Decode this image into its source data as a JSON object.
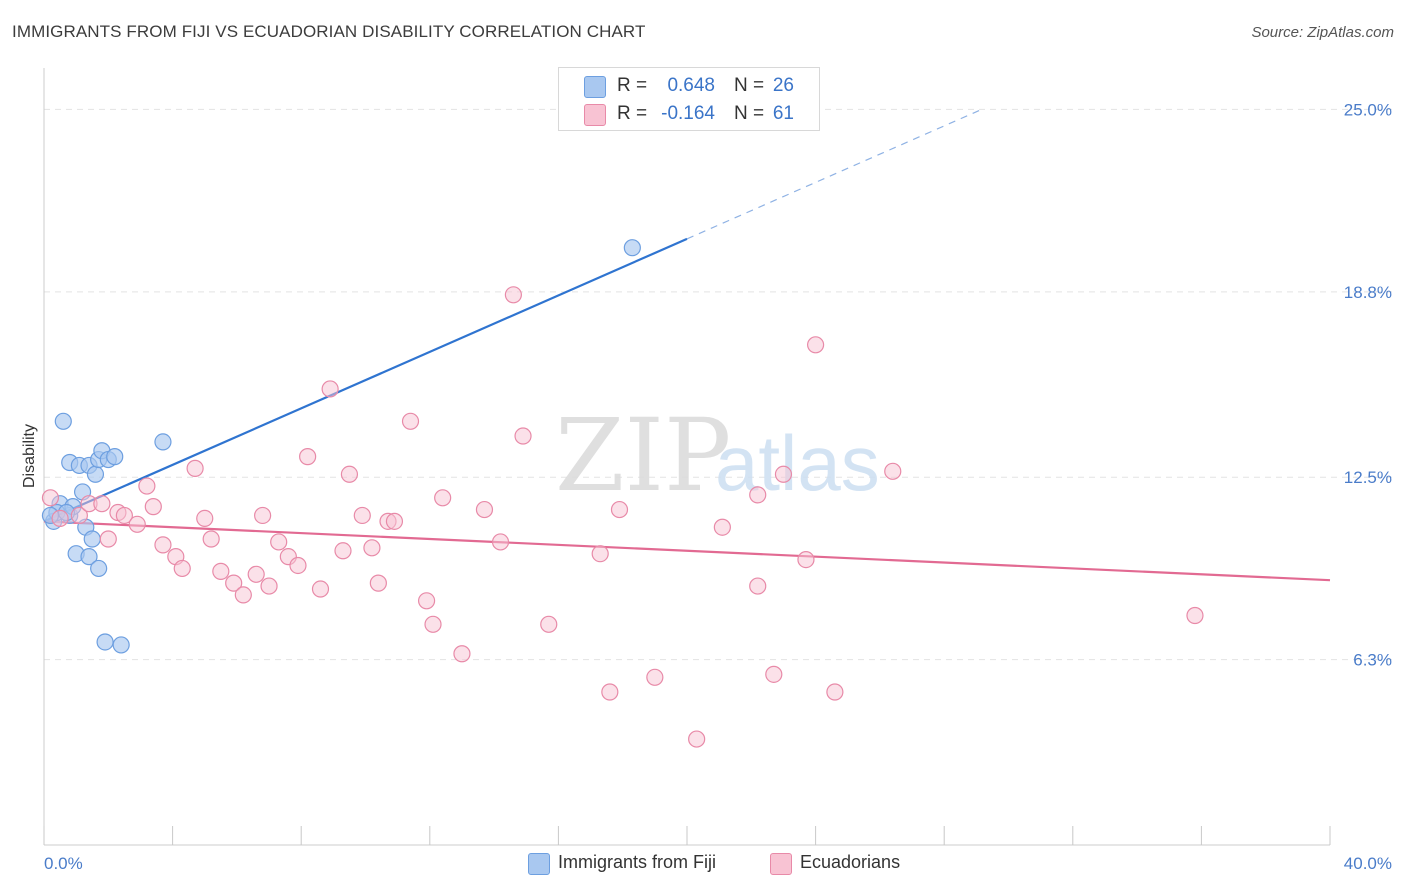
{
  "title": "IMMIGRANTS FROM FIJI VS ECUADORIAN DISABILITY CORRELATION CHART",
  "source": "Source: ZipAtlas.com",
  "watermark": {
    "zip": "ZIP",
    "atlas": "atlas"
  },
  "legend": {
    "rows": [
      {
        "r_label": "R =",
        "r_value": "0.648",
        "n_label": "N =",
        "n_value": "26",
        "color": "#a9c8f0",
        "border": "#6d9fe0"
      },
      {
        "r_label": "R =",
        "r_value": "-0.164",
        "n_label": "N =",
        "n_value": "61",
        "color": "#f8c3d3",
        "border": "#e88aa8"
      }
    ]
  },
  "bottom_legend": [
    {
      "label": "Immigrants from Fiji",
      "color": "#a9c8f0",
      "border": "#6d9fe0"
    },
    {
      "label": "Ecuadorians",
      "color": "#f8c3d3",
      "border": "#e88aa8"
    }
  ],
  "chart_data": {
    "type": "scatter",
    "xlabel": "",
    "ylabel": "Disability",
    "xlim": [
      0,
      40
    ],
    "ylim": [
      0,
      26
    ],
    "x_tick_labels": [
      "0.0%",
      "40.0%"
    ],
    "y_ticks": [
      6.3,
      12.5,
      18.8,
      25.0
    ],
    "y_tick_labels": [
      "6.3%",
      "12.5%",
      "18.8%",
      "25.0%"
    ],
    "grid": true,
    "series": [
      {
        "name": "Immigrants from Fiji",
        "color": "#6d9fe0",
        "fill": "#a9c8f0",
        "trend": {
          "x0": 0,
          "y0": 11.0,
          "x1": 20,
          "y1": 20.6,
          "x_dashed_end": 29.2
        },
        "points": [
          [
            0.3,
            11.0
          ],
          [
            0.5,
            11.6
          ],
          [
            0.8,
            11.2
          ],
          [
            0.9,
            11.5
          ],
          [
            0.6,
            14.4
          ],
          [
            0.8,
            13.0
          ],
          [
            1.0,
            9.9
          ],
          [
            1.1,
            12.9
          ],
          [
            1.4,
            12.9
          ],
          [
            1.3,
            10.8
          ],
          [
            1.2,
            12.0
          ],
          [
            1.4,
            9.8
          ],
          [
            1.5,
            10.4
          ],
          [
            1.6,
            12.6
          ],
          [
            1.7,
            13.1
          ],
          [
            1.7,
            9.4
          ],
          [
            1.8,
            13.4
          ],
          [
            2.0,
            13.1
          ],
          [
            2.2,
            13.2
          ],
          [
            1.9,
            6.9
          ],
          [
            2.4,
            6.8
          ],
          [
            3.7,
            13.7
          ],
          [
            18.3,
            20.3
          ],
          [
            0.4,
            11.3
          ],
          [
            0.7,
            11.3
          ],
          [
            0.2,
            11.2
          ]
        ]
      },
      {
        "name": "Ecuadorians",
        "color": "#e88aa8",
        "fill": "#f8c3d3",
        "trend": {
          "x0": 0,
          "y0": 11.0,
          "x1": 40,
          "y1": 9.0
        },
        "points": [
          [
            0.2,
            11.8
          ],
          [
            1.1,
            11.2
          ],
          [
            1.4,
            11.6
          ],
          [
            1.8,
            11.6
          ],
          [
            2.0,
            10.4
          ],
          [
            2.3,
            11.3
          ],
          [
            2.5,
            11.2
          ],
          [
            2.9,
            10.9
          ],
          [
            3.2,
            12.2
          ],
          [
            3.4,
            11.5
          ],
          [
            3.7,
            10.2
          ],
          [
            4.1,
            9.8
          ],
          [
            4.3,
            9.4
          ],
          [
            4.7,
            12.8
          ],
          [
            5.0,
            11.1
          ],
          [
            5.2,
            10.4
          ],
          [
            5.5,
            9.3
          ],
          [
            5.9,
            8.9
          ],
          [
            6.2,
            8.5
          ],
          [
            6.6,
            9.2
          ],
          [
            6.8,
            11.2
          ],
          [
            7.0,
            8.8
          ],
          [
            7.3,
            10.3
          ],
          [
            7.6,
            9.8
          ],
          [
            7.9,
            9.5
          ],
          [
            8.2,
            13.2
          ],
          [
            8.6,
            8.7
          ],
          [
            8.9,
            15.5
          ],
          [
            9.3,
            10.0
          ],
          [
            9.5,
            12.6
          ],
          [
            9.9,
            11.2
          ],
          [
            10.2,
            10.1
          ],
          [
            10.4,
            8.9
          ],
          [
            10.7,
            11.0
          ],
          [
            10.9,
            11.0
          ],
          [
            11.4,
            14.4
          ],
          [
            11.9,
            8.3
          ],
          [
            12.1,
            7.5
          ],
          [
            12.4,
            11.8
          ],
          [
            13.0,
            6.5
          ],
          [
            13.7,
            11.4
          ],
          [
            14.2,
            10.3
          ],
          [
            14.6,
            18.7
          ],
          [
            14.9,
            13.9
          ],
          [
            15.7,
            7.5
          ],
          [
            17.3,
            9.9
          ],
          [
            17.6,
            5.2
          ],
          [
            17.9,
            11.4
          ],
          [
            19.0,
            5.7
          ],
          [
            21.1,
            10.8
          ],
          [
            22.2,
            11.9
          ],
          [
            22.2,
            8.8
          ],
          [
            22.7,
            5.8
          ],
          [
            23.0,
            12.6
          ],
          [
            23.7,
            9.7
          ],
          [
            24.0,
            17.0
          ],
          [
            24.6,
            5.2
          ],
          [
            26.4,
            12.7
          ],
          [
            35.8,
            7.8
          ],
          [
            20.3,
            3.6
          ],
          [
            0.5,
            11.1
          ]
        ]
      }
    ]
  }
}
